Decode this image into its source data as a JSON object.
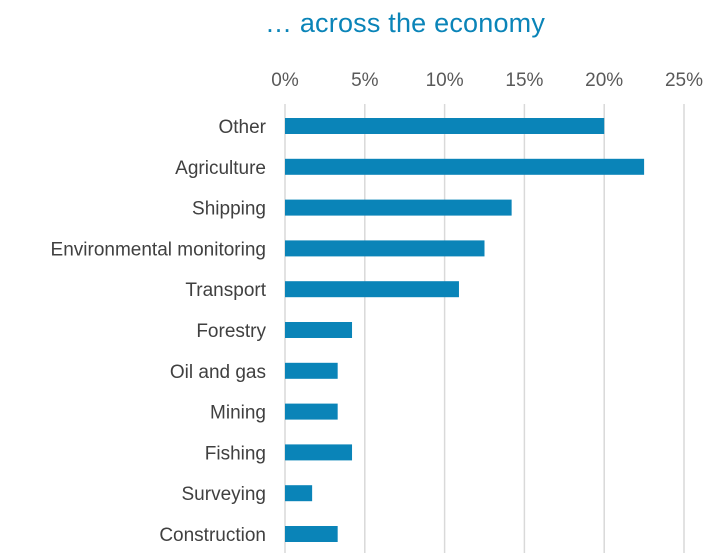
{
  "chart_data": {
    "type": "bar",
    "orientation": "horizontal",
    "title": "… across the economy",
    "categories": [
      "Other",
      "Agriculture",
      "Shipping",
      "Environmental monitoring",
      "Transport",
      "Forestry",
      "Oil and gas",
      "Mining",
      "Fishing",
      "Surveying",
      "Construction"
    ],
    "values": [
      20.0,
      22.5,
      14.2,
      12.5,
      10.9,
      4.2,
      3.3,
      3.3,
      4.2,
      1.7,
      3.3
    ],
    "xlim": [
      0,
      25
    ],
    "xticks": [
      0,
      5,
      10,
      15,
      20,
      25
    ],
    "xtick_labels": [
      "0%",
      "5%",
      "10%",
      "15%",
      "20%",
      "25%"
    ],
    "x_axis_position": "top",
    "grid": true,
    "bar_color": "#0a84b8",
    "grid_color": "#d9d9d9"
  }
}
